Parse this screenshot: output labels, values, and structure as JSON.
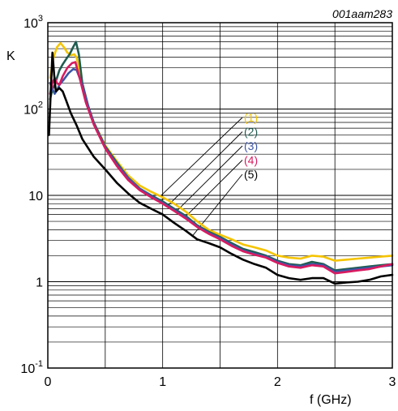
{
  "figure_id": "001aam283",
  "chart_data": {
    "type": "line",
    "title": "",
    "xlabel": "f (GHz)",
    "ylabel": "K",
    "xlim": [
      0,
      3
    ],
    "ylim": [
      0.1,
      1000
    ],
    "yscale": "log",
    "grid": true,
    "x_ticks": [
      {
        "value": 0,
        "label": "0"
      },
      {
        "value": 1,
        "label": "1"
      },
      {
        "value": 2,
        "label": "2"
      },
      {
        "value": 3,
        "label": "3"
      }
    ],
    "y_ticks": [
      {
        "value": 0.1,
        "base": "10",
        "exp": "-1",
        "label": ""
      },
      {
        "value": 1,
        "base": "",
        "exp": "",
        "label": "1"
      },
      {
        "value": 10,
        "base": "",
        "exp": "",
        "label": "10"
      },
      {
        "value": 100,
        "base": "10",
        "exp": "2",
        "label": ""
      },
      {
        "value": 1000,
        "base": "10",
        "exp": "3",
        "label": ""
      }
    ],
    "series": [
      {
        "name": "(1)",
        "color": "#f5c400",
        "points": [
          [
            0.02,
            230
          ],
          [
            0.05,
            400
          ],
          [
            0.08,
            520
          ],
          [
            0.11,
            580
          ],
          [
            0.14,
            520
          ],
          [
            0.17,
            450
          ],
          [
            0.2,
            420
          ],
          [
            0.23,
            430
          ],
          [
            0.25,
            400
          ],
          [
            0.3,
            200
          ],
          [
            0.35,
            110
          ],
          [
            0.4,
            70
          ],
          [
            0.5,
            38
          ],
          [
            0.6,
            25
          ],
          [
            0.7,
            17
          ],
          [
            0.8,
            13
          ],
          [
            0.9,
            11
          ],
          [
            1.0,
            9.5
          ],
          [
            1.1,
            8
          ],
          [
            1.2,
            6.5
          ],
          [
            1.3,
            5
          ],
          [
            1.4,
            4
          ],
          [
            1.5,
            3.5
          ],
          [
            1.6,
            3.1
          ],
          [
            1.7,
            2.7
          ],
          [
            1.8,
            2.5
          ],
          [
            1.9,
            2.3
          ],
          [
            2.0,
            2.0
          ],
          [
            2.1,
            1.9
          ],
          [
            2.2,
            1.85
          ],
          [
            2.3,
            2.0
          ],
          [
            2.4,
            1.95
          ],
          [
            2.5,
            1.75
          ],
          [
            2.6,
            1.8
          ],
          [
            2.7,
            1.85
          ],
          [
            2.8,
            1.9
          ],
          [
            2.9,
            1.95
          ],
          [
            3.0,
            2.0
          ]
        ]
      },
      {
        "name": "(2)",
        "color": "#1f5c4f",
        "points": [
          [
            0.02,
            130
          ],
          [
            0.04,
            170
          ],
          [
            0.06,
            190
          ],
          [
            0.08,
            230
          ],
          [
            0.1,
            280
          ],
          [
            0.13,
            330
          ],
          [
            0.16,
            380
          ],
          [
            0.19,
            430
          ],
          [
            0.22,
            520
          ],
          [
            0.245,
            600
          ],
          [
            0.27,
            430
          ],
          [
            0.3,
            200
          ],
          [
            0.35,
            110
          ],
          [
            0.4,
            70
          ],
          [
            0.5,
            37
          ],
          [
            0.6,
            24
          ],
          [
            0.7,
            16
          ],
          [
            0.8,
            12
          ],
          [
            0.9,
            10
          ],
          [
            1.0,
            8.5
          ],
          [
            1.1,
            7
          ],
          [
            1.2,
            5.8
          ],
          [
            1.3,
            4.5
          ],
          [
            1.4,
            3.8
          ],
          [
            1.5,
            3.3
          ],
          [
            1.6,
            2.8
          ],
          [
            1.7,
            2.4
          ],
          [
            1.8,
            2.2
          ],
          [
            1.9,
            2.0
          ],
          [
            2.0,
            1.75
          ],
          [
            2.1,
            1.6
          ],
          [
            2.2,
            1.55
          ],
          [
            2.3,
            1.7
          ],
          [
            2.4,
            1.6
          ],
          [
            2.5,
            1.35
          ],
          [
            2.6,
            1.4
          ],
          [
            2.7,
            1.45
          ],
          [
            2.8,
            1.5
          ],
          [
            2.9,
            1.55
          ],
          [
            3.0,
            1.6
          ]
        ]
      },
      {
        "name": "(3)",
        "color": "#3b55a6",
        "points": [
          [
            0.02,
            200
          ],
          [
            0.04,
            170
          ],
          [
            0.06,
            150
          ],
          [
            0.08,
            165
          ],
          [
            0.1,
            190
          ],
          [
            0.14,
            220
          ],
          [
            0.18,
            260
          ],
          [
            0.22,
            290
          ],
          [
            0.25,
            285
          ],
          [
            0.3,
            190
          ],
          [
            0.35,
            110
          ],
          [
            0.4,
            68
          ],
          [
            0.5,
            36
          ],
          [
            0.6,
            23
          ],
          [
            0.7,
            16
          ],
          [
            0.8,
            12
          ],
          [
            0.9,
            9.8
          ],
          [
            1.0,
            8.2
          ],
          [
            1.1,
            6.8
          ],
          [
            1.2,
            5.6
          ],
          [
            1.3,
            4.4
          ],
          [
            1.4,
            3.7
          ],
          [
            1.5,
            3.2
          ],
          [
            1.6,
            2.7
          ],
          [
            1.7,
            2.3
          ],
          [
            1.8,
            2.1
          ],
          [
            1.9,
            1.95
          ],
          [
            2.0,
            1.7
          ],
          [
            2.1,
            1.55
          ],
          [
            2.2,
            1.5
          ],
          [
            2.3,
            1.6
          ],
          [
            2.4,
            1.55
          ],
          [
            2.5,
            1.3
          ],
          [
            2.6,
            1.35
          ],
          [
            2.7,
            1.4
          ],
          [
            2.8,
            1.45
          ],
          [
            2.9,
            1.5
          ],
          [
            3.0,
            1.55
          ]
        ]
      },
      {
        "name": "(4)",
        "color": "#d81b60",
        "points": [
          [
            0.02,
            150
          ],
          [
            0.04,
            200
          ],
          [
            0.06,
            230
          ],
          [
            0.08,
            200
          ],
          [
            0.1,
            190
          ],
          [
            0.13,
            240
          ],
          [
            0.17,
            300
          ],
          [
            0.21,
            340
          ],
          [
            0.24,
            350
          ],
          [
            0.28,
            220
          ],
          [
            0.33,
            120
          ],
          [
            0.4,
            66
          ],
          [
            0.5,
            35
          ],
          [
            0.6,
            22
          ],
          [
            0.7,
            15
          ],
          [
            0.8,
            11.5
          ],
          [
            0.9,
            9.5
          ],
          [
            1.0,
            8
          ],
          [
            1.1,
            6.6
          ],
          [
            1.2,
            5.4
          ],
          [
            1.3,
            4.3
          ],
          [
            1.4,
            3.6
          ],
          [
            1.5,
            3.1
          ],
          [
            1.6,
            2.6
          ],
          [
            1.7,
            2.25
          ],
          [
            1.8,
            2.05
          ],
          [
            1.9,
            1.9
          ],
          [
            2.0,
            1.65
          ],
          [
            2.1,
            1.5
          ],
          [
            2.2,
            1.45
          ],
          [
            2.3,
            1.55
          ],
          [
            2.4,
            1.5
          ],
          [
            2.5,
            1.25
          ],
          [
            2.6,
            1.3
          ],
          [
            2.7,
            1.35
          ],
          [
            2.8,
            1.4
          ],
          [
            2.9,
            1.5
          ],
          [
            3.0,
            1.6
          ]
        ]
      },
      {
        "name": "(5)",
        "color": "#000000",
        "points": [
          [
            0.01,
            50
          ],
          [
            0.025,
            150
          ],
          [
            0.04,
            450
          ],
          [
            0.055,
            250
          ],
          [
            0.07,
            160
          ],
          [
            0.1,
            175
          ],
          [
            0.13,
            160
          ],
          [
            0.16,
            125
          ],
          [
            0.2,
            90
          ],
          [
            0.25,
            65
          ],
          [
            0.3,
            45
          ],
          [
            0.4,
            28
          ],
          [
            0.5,
            20
          ],
          [
            0.6,
            14
          ],
          [
            0.7,
            10.5
          ],
          [
            0.8,
            8.2
          ],
          [
            0.9,
            7
          ],
          [
            1.0,
            6
          ],
          [
            1.1,
            4.8
          ],
          [
            1.2,
            3.9
          ],
          [
            1.3,
            3.1
          ],
          [
            1.4,
            2.8
          ],
          [
            1.5,
            2.5
          ],
          [
            1.6,
            2.1
          ],
          [
            1.7,
            1.8
          ],
          [
            1.8,
            1.6
          ],
          [
            1.9,
            1.45
          ],
          [
            2.0,
            1.2
          ],
          [
            2.1,
            1.1
          ],
          [
            2.2,
            1.05
          ],
          [
            2.3,
            1.1
          ],
          [
            2.4,
            1.1
          ],
          [
            2.5,
            0.95
          ],
          [
            2.6,
            0.98
          ],
          [
            2.7,
            1.0
          ],
          [
            2.8,
            1.05
          ],
          [
            2.9,
            1.15
          ],
          [
            3.0,
            1.2
          ]
        ]
      }
    ],
    "legend_placement": "center-right"
  }
}
